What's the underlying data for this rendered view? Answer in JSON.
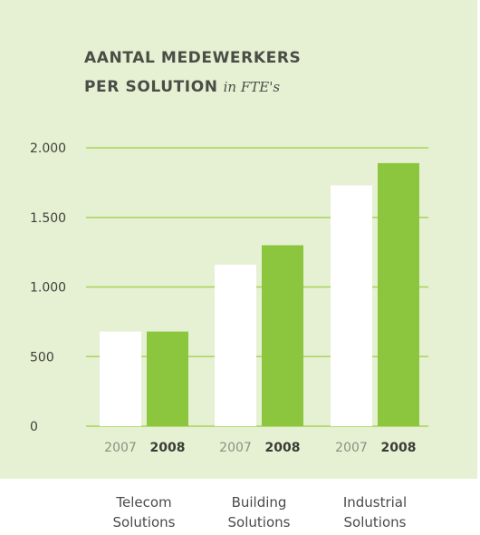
{
  "chart_data": {
    "type": "bar",
    "title": "AANTAL MEDEWERKERS",
    "title_line2": "PER SOLUTION",
    "subtitle": "in FTE's",
    "categories": [
      {
        "line1": "Telecom",
        "line2": "Solutions"
      },
      {
        "line1": "Building",
        "line2": "Solutions"
      },
      {
        "line1": "Industrial",
        "line2": "Solutions"
      }
    ],
    "series": [
      {
        "name": "2007",
        "color": "#ffffff",
        "label_color": "#8d9180",
        "values": [
          680,
          1160,
          1730
        ]
      },
      {
        "name": "2008",
        "color": "#8cc63f",
        "label_color": "#3a3d35",
        "values": [
          680,
          1300,
          1890
        ]
      }
    ],
    "ylim": [
      0,
      2000
    ],
    "yticks": [
      0,
      500,
      1000,
      1500,
      2000
    ],
    "ytick_labels": [
      "0",
      "500",
      "1.000",
      "1.500",
      "2.000"
    ],
    "gridline_color": "#a8d45a",
    "background_color": "#e6f0d3",
    "grid": true
  }
}
